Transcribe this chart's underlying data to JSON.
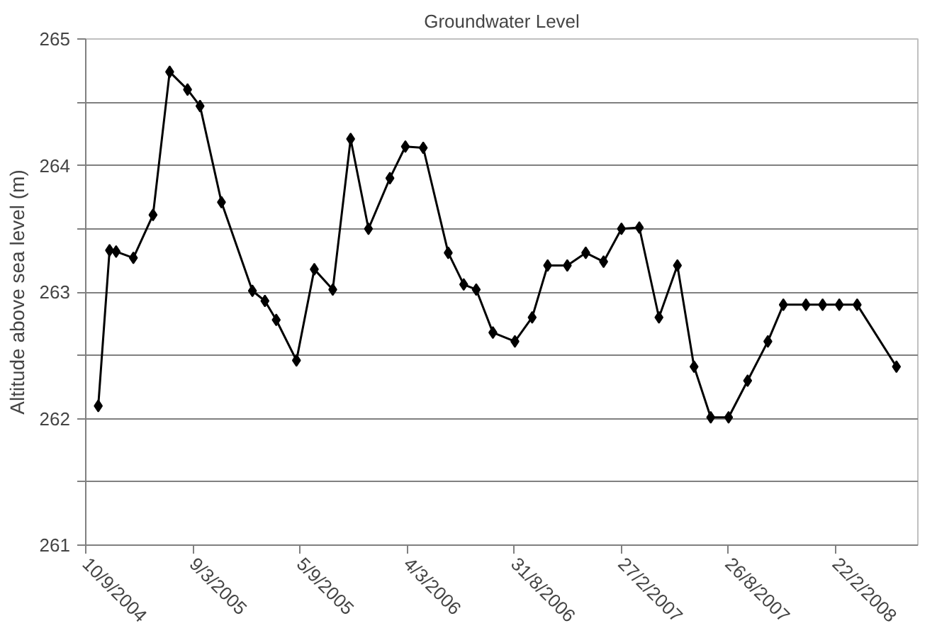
{
  "chart_data": {
    "type": "line",
    "title": "Groundwater Level",
    "ylabel": "Altitude above sea level (m)",
    "x": [
      "2004-10-01",
      "2004-10-20",
      "2004-10-31",
      "2004-11-29",
      "2005-01-01",
      "2005-01-29",
      "2005-02-28",
      "2005-03-21",
      "2005-04-26",
      "2005-06-17",
      "2005-07-08",
      "2005-07-27",
      "2005-08-30",
      "2005-09-29",
      "2005-10-30",
      "2005-11-29",
      "2005-12-29",
      "2006-02-03",
      "2006-03-01",
      "2006-03-31",
      "2006-05-12",
      "2006-06-07",
      "2006-06-28",
      "2006-07-26",
      "2006-09-01",
      "2006-09-30",
      "2006-10-26",
      "2006-11-28",
      "2006-12-29",
      "2007-01-28",
      "2007-02-27",
      "2007-03-29",
      "2007-05-01",
      "2007-06-01",
      "2007-06-29",
      "2007-07-27",
      "2007-08-26",
      "2007-09-27",
      "2007-10-31",
      "2007-11-26",
      "2008-01-03",
      "2008-01-31",
      "2008-02-28",
      "2008-03-29",
      "2008-06-03"
    ],
    "series": [
      {
        "color": "#000000",
        "values": [
          262.1,
          263.33,
          263.32,
          263.27,
          263.61,
          264.74,
          264.6,
          264.47,
          263.71,
          263.01,
          262.93,
          262.78,
          262.46,
          263.18,
          263.02,
          264.21,
          263.5,
          263.9,
          264.15,
          264.14,
          263.31,
          263.06,
          263.02,
          262.68,
          262.61,
          262.8,
          263.21,
          263.21,
          263.31,
          263.24,
          263.5,
          263.51,
          262.8,
          263.21,
          262.41,
          262.01,
          262.01,
          262.3,
          262.61,
          262.9,
          262.9,
          262.9,
          262.9,
          262.9,
          262.41
        ]
      }
    ],
    "xlim": [
      "2004-09-10",
      "2008-07-09"
    ],
    "xticks": [
      {
        "value": "2004-09-10",
        "label": "10/9/2004"
      },
      {
        "value": "2005-03-09",
        "label": "9/3/2005"
      },
      {
        "value": "2005-09-05",
        "label": "5/9/2005"
      },
      {
        "value": "2006-03-04",
        "label": "4/3/2006"
      },
      {
        "value": "2006-08-31",
        "label": "31/8/2006"
      },
      {
        "value": "2007-02-27",
        "label": "27/2/2007"
      },
      {
        "value": "2007-08-26",
        "label": "26/8/2007"
      },
      {
        "value": "2008-02-22",
        "label": "22/2/2008"
      }
    ],
    "ylim": [
      261,
      265
    ],
    "yticks": [
      261,
      {
        "value": 261.5,
        "label": null
      },
      262,
      {
        "value": 262.5,
        "label": null
      },
      263,
      {
        "value": 263.5,
        "label": null
      },
      264,
      {
        "value": 264.5,
        "label": null
      },
      265
    ],
    "grid": "y",
    "marker": "diamond",
    "line_style": "solid"
  }
}
